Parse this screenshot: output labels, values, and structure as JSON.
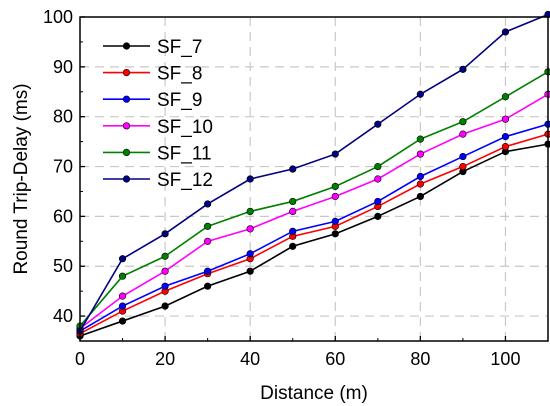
{
  "chart_data": {
    "type": "line",
    "xlabel": "Distance (m)",
    "ylabel": "Round Trip-Delay (ms)",
    "xlim": [
      0,
      110
    ],
    "ylim": [
      35,
      100
    ],
    "x_ticks": [
      0,
      20,
      40,
      60,
      80,
      100
    ],
    "y_ticks": [
      40,
      50,
      60,
      70,
      80,
      90,
      100
    ],
    "grid": true,
    "legend_position": "top-left",
    "x": [
      0,
      10,
      20,
      30,
      40,
      50,
      60,
      70,
      80,
      90,
      100,
      110
    ],
    "series": [
      {
        "name": "SF_7",
        "color": "#000000",
        "values": [
          36.0,
          39.0,
          42.0,
          46.0,
          49.0,
          54.0,
          56.5,
          60.0,
          64.0,
          69.0,
          73.0,
          74.5
        ]
      },
      {
        "name": "SF_8",
        "color": "#ff0000",
        "values": [
          36.5,
          41.0,
          45.0,
          48.5,
          51.5,
          56.0,
          58.0,
          62.0,
          66.5,
          70.0,
          74.0,
          76.5
        ]
      },
      {
        "name": "SF_9",
        "color": "#0000ff",
        "values": [
          37.0,
          42.0,
          46.0,
          49.0,
          52.5,
          57.0,
          59.0,
          63.0,
          68.0,
          72.0,
          76.0,
          78.5
        ]
      },
      {
        "name": "SF_10",
        "color": "#ff00ff",
        "values": [
          37.5,
          44.0,
          49.0,
          55.0,
          57.5,
          61.0,
          64.0,
          67.5,
          72.5,
          76.5,
          79.5,
          84.5
        ]
      },
      {
        "name": "SF_11",
        "color": "#008000",
        "values": [
          38.0,
          48.0,
          52.0,
          58.0,
          61.0,
          63.0,
          66.0,
          70.0,
          75.5,
          79.0,
          84.0,
          89.0
        ]
      },
      {
        "name": "SF_12",
        "color": "#000080",
        "values": [
          37.0,
          51.5,
          56.5,
          62.5,
          67.5,
          69.5,
          72.5,
          78.5,
          84.5,
          89.5,
          97.0,
          100.5
        ]
      }
    ]
  }
}
